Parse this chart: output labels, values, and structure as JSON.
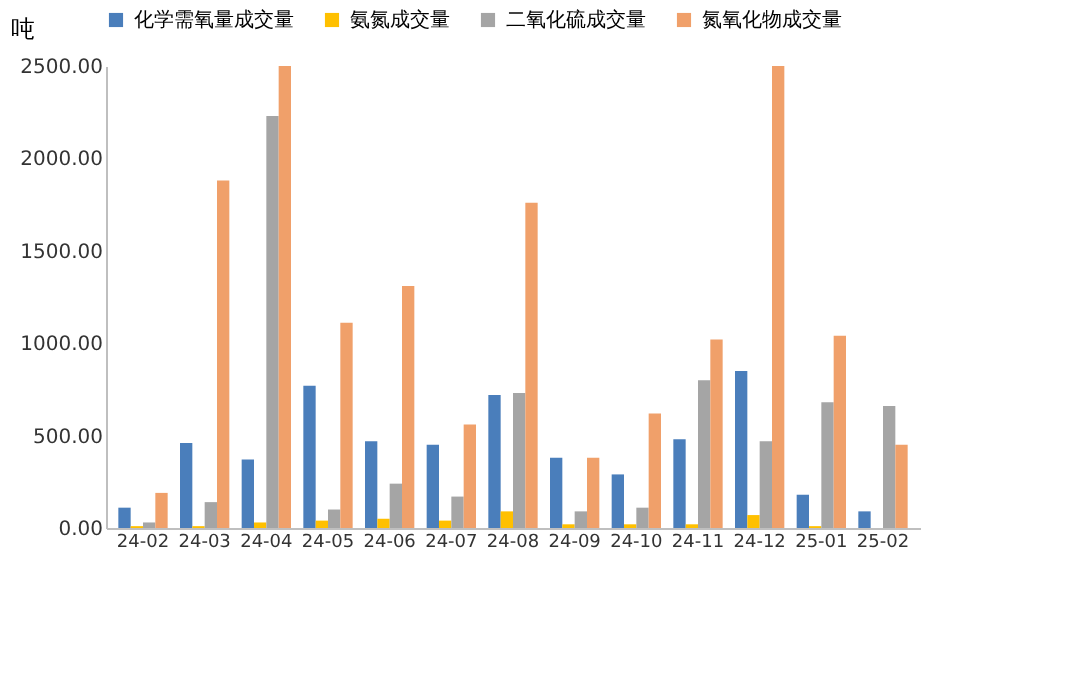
{
  "chart_data": {
    "type": "bar",
    "ylabel": "吨",
    "categories": [
      "24-02",
      "24-03",
      "24-04",
      "24-05",
      "24-06",
      "24-07",
      "24-08",
      "24-09",
      "24-10",
      "24-11",
      "24-12",
      "25-01",
      "25-02"
    ],
    "series": [
      {
        "name": "化学需氧量成交量",
        "color": "#4a7ebb",
        "values": [
          110,
          460,
          370,
          770,
          470,
          450,
          720,
          380,
          290,
          480,
          850,
          180,
          90
        ]
      },
      {
        "name": "氨氮成交量",
        "color": "#ffc000",
        "values": [
          10,
          10,
          30,
          40,
          50,
          40,
          90,
          20,
          20,
          20,
          70,
          10,
          0
        ]
      },
      {
        "name": "二氧化硫成交量",
        "color": "#a5a5a5",
        "values": [
          30,
          140,
          2230,
          100,
          240,
          170,
          730,
          90,
          110,
          800,
          470,
          680,
          660
        ]
      },
      {
        "name": "氮氧化物成交量",
        "color": "#f0a06a",
        "values": [
          190,
          1880,
          2500,
          1110,
          1310,
          560,
          1760,
          380,
          620,
          1020,
          2500,
          1040,
          450
        ]
      }
    ],
    "ylim": [
      0,
      2500
    ],
    "yticks": [
      {
        "value": 0,
        "label": "0.00"
      },
      {
        "value": 500,
        "label": "500.00"
      },
      {
        "value": 1000,
        "label": "1000.00"
      },
      {
        "value": 1500,
        "label": "1500.00"
      },
      {
        "value": 2000,
        "label": "2000.00"
      },
      {
        "value": 2500,
        "label": "2500.00"
      }
    ],
    "grid": false,
    "legend": "top"
  }
}
